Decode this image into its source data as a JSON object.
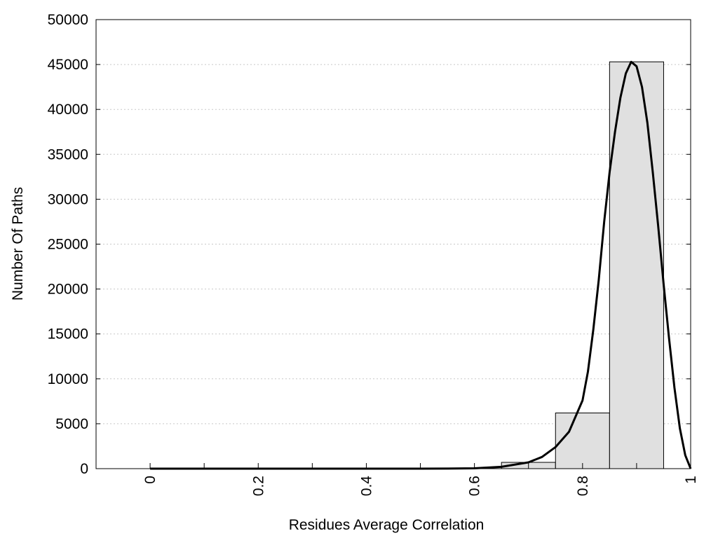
{
  "chart_data": {
    "type": "bar",
    "title": "",
    "xlabel": "Residues Average Correlation",
    "ylabel": "Number Of Paths",
    "xlim": [
      -0.1,
      1.0
    ],
    "ylim": [
      0,
      50000
    ],
    "grid": {
      "y": true,
      "x": false,
      "style": "dotted"
    },
    "legend": "none",
    "x_tick_labels": [
      "0",
      "0.2",
      "0.4",
      "0.6",
      "0.8",
      "1"
    ],
    "x_ticks": [
      0,
      0.2,
      0.4,
      0.6,
      0.8,
      1
    ],
    "x_minor_ticks": [
      0.1,
      0.3,
      0.5,
      0.7,
      0.9
    ],
    "y_tick_labels": [
      "0",
      "5000",
      "10000",
      "15000",
      "20000",
      "25000",
      "30000",
      "35000",
      "40000",
      "45000",
      "50000"
    ],
    "y_ticks": [
      0,
      5000,
      10000,
      15000,
      20000,
      25000,
      30000,
      35000,
      40000,
      45000,
      50000
    ],
    "bars": [
      {
        "x0": 0.0,
        "x1": 0.1,
        "value": 0
      },
      {
        "x0": 0.1,
        "x1": 0.2,
        "value": 0
      },
      {
        "x0": 0.2,
        "x1": 0.3,
        "value": 0
      },
      {
        "x0": 0.3,
        "x1": 0.4,
        "value": 0
      },
      {
        "x0": 0.4,
        "x1": 0.5,
        "value": 0
      },
      {
        "x0": 0.5,
        "x1": 0.6,
        "value": 0
      },
      {
        "x0": 0.6,
        "x1": 0.65,
        "value": 0
      },
      {
        "x0": 0.65,
        "x1": 0.75,
        "value": 700
      },
      {
        "x0": 0.75,
        "x1": 0.85,
        "value": 6200
      },
      {
        "x0": 0.85,
        "x1": 0.95,
        "value": 45300
      }
    ],
    "fit_curve": {
      "x": [
        0.0,
        0.2,
        0.4,
        0.5,
        0.55,
        0.6,
        0.65,
        0.7,
        0.725,
        0.75,
        0.775,
        0.8,
        0.81,
        0.82,
        0.83,
        0.84,
        0.85,
        0.86,
        0.87,
        0.88,
        0.89,
        0.9,
        0.91,
        0.92,
        0.93,
        0.94,
        0.95,
        0.96,
        0.97,
        0.98,
        0.99,
        1.0
      ],
      "y": [
        0,
        0,
        0,
        0,
        10,
        40,
        200,
        700,
        1300,
        2400,
        4100,
        7600,
        10800,
        15500,
        21000,
        27500,
        33000,
        37500,
        41300,
        44000,
        45300,
        44800,
        42500,
        38500,
        33000,
        27000,
        20500,
        14500,
        9000,
        4500,
        1500,
        0
      ]
    },
    "colors": {
      "bar_fill": "#e0e0e0",
      "bar_stroke": "#000000",
      "curve": "#000000",
      "grid": "#c8c8c8",
      "axis": "#000000"
    }
  }
}
